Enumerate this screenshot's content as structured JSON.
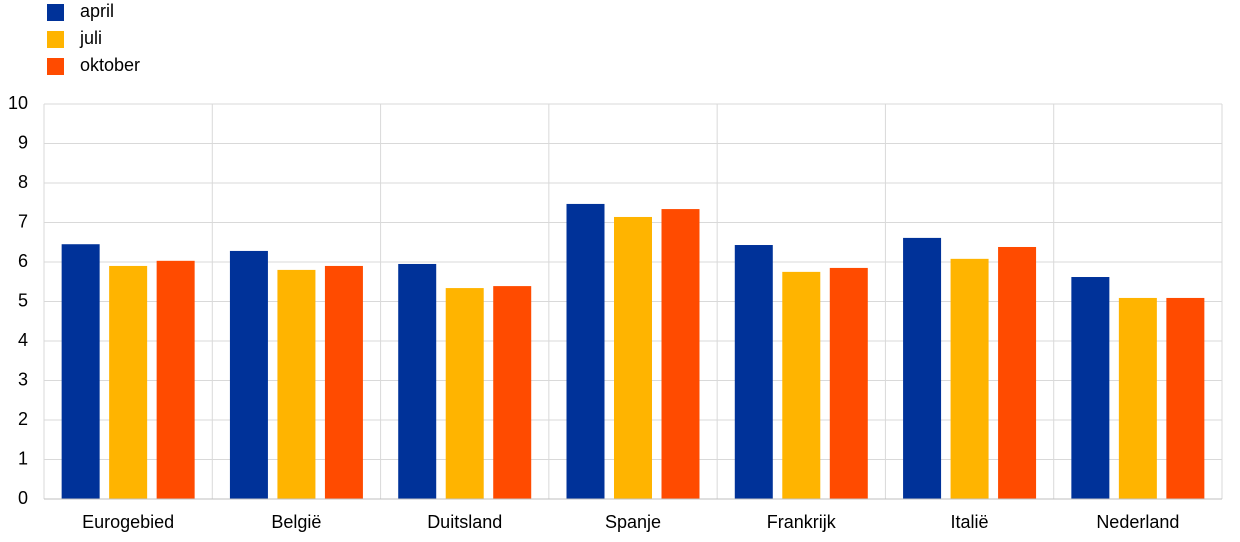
{
  "chart_data": {
    "type": "bar",
    "categories": [
      "Eurogebied",
      "België",
      "Duitsland",
      "Spanje",
      "Frankrijk",
      "Italië",
      "Nederland"
    ],
    "series": [
      {
        "name": "april",
        "color": "#003299",
        "values": [
          6.45,
          6.28,
          5.95,
          7.47,
          6.43,
          6.61,
          5.62
        ]
      },
      {
        "name": "juli",
        "color": "#ffb400",
        "values": [
          5.9,
          5.8,
          5.34,
          7.14,
          5.75,
          6.08,
          5.09
        ]
      },
      {
        "name": "oktober",
        "color": "#ff4b00",
        "values": [
          6.03,
          5.9,
          5.39,
          7.34,
          5.85,
          6.38,
          5.09
        ]
      }
    ],
    "ylim": [
      0,
      10
    ],
    "yticks": [
      0,
      1,
      2,
      3,
      4,
      5,
      6,
      7,
      8,
      9,
      10
    ],
    "grid": true,
    "legend": "top-left"
  }
}
